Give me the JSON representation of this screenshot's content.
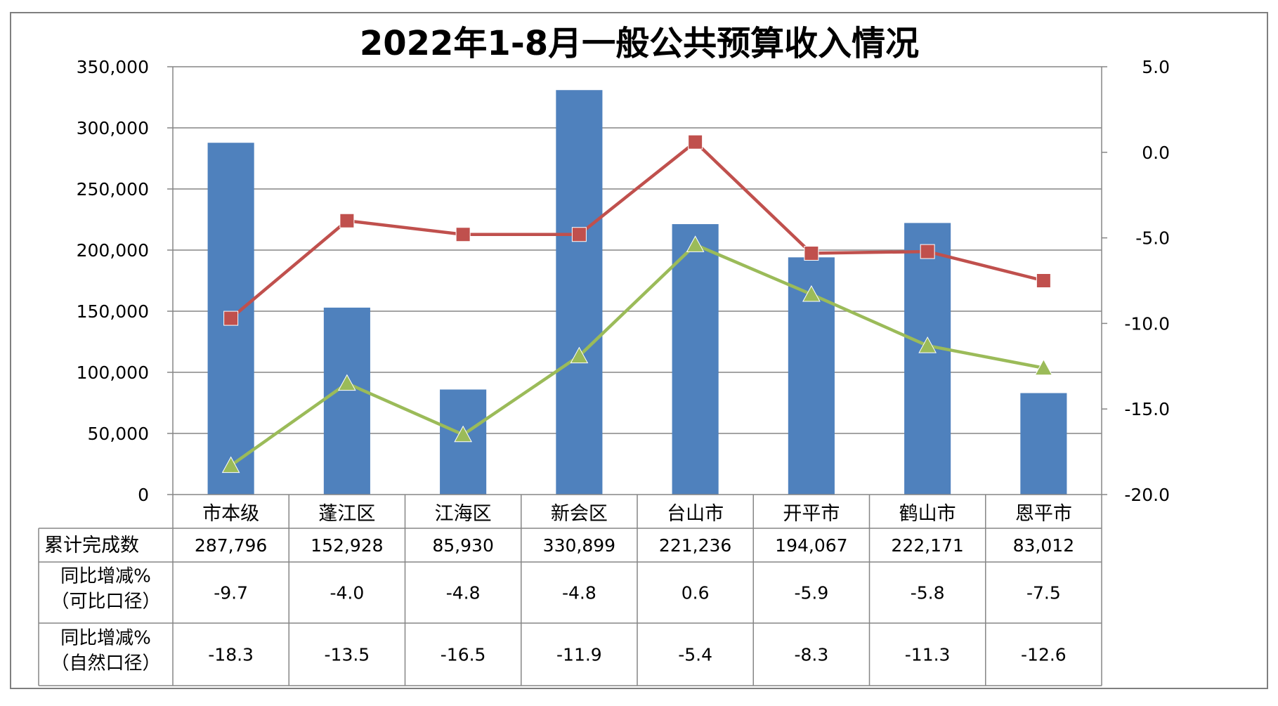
{
  "chart_data": {
    "type": "bar",
    "title": "2022年1-8月一般公共预算收入情况",
    "categories": [
      "市本级",
      "蓬江区",
      "江海区",
      "新会区",
      "台山市",
      "开平市",
      "鹤山市",
      "恩平市"
    ],
    "y_left": {
      "ylim": [
        0,
        350000
      ],
      "ticks": [
        0,
        50000,
        100000,
        150000,
        200000,
        250000,
        300000,
        350000
      ],
      "tick_labels": [
        "0",
        "50,000",
        "100,000",
        "150,000",
        "200,000",
        "250,000",
        "300,000",
        "350,000"
      ]
    },
    "y_right": {
      "ylim": [
        -20,
        5
      ],
      "ticks": [
        -20,
        -15,
        -10,
        -5,
        0,
        5
      ],
      "tick_labels": [
        "-20.0",
        "-15.0",
        "-10.0",
        "-5.0",
        "0.0",
        "5.0"
      ]
    },
    "series": [
      {
        "name": "累计完成数",
        "kind": "bar",
        "axis": "left",
        "color": "#4F81BD",
        "values": [
          287796,
          152928,
          85930,
          330899,
          221236,
          194067,
          222171,
          83012
        ],
        "labels": [
          "287,796",
          "152,928",
          "85,930",
          "330,899",
          "221,236",
          "194,067",
          "222,171",
          "83,012"
        ]
      },
      {
        "name": "同比增减%（可比口径）",
        "label_lines": [
          "同比增减%",
          "（可比口径）"
        ],
        "kind": "line",
        "marker": "square",
        "axis": "right",
        "color": "#C0504D",
        "values": [
          -9.7,
          -4.0,
          -4.8,
          -4.8,
          0.6,
          -5.9,
          -5.8,
          -7.5
        ],
        "labels": [
          "-9.7",
          "-4.0",
          "-4.8",
          "-4.8",
          "0.6",
          "-5.9",
          "-5.8",
          "-7.5"
        ]
      },
      {
        "name": "同比增减%（自然口径）",
        "label_lines": [
          "同比增减%",
          "（自然口径）"
        ],
        "kind": "line",
        "marker": "triangle",
        "axis": "right",
        "color": "#9BBB59",
        "values": [
          -18.3,
          -13.5,
          -16.5,
          -11.9,
          -5.4,
          -8.3,
          -11.3,
          -12.6
        ],
        "labels": [
          "-18.3",
          "-13.5",
          "-16.5",
          "-11.9",
          "-5.4",
          "-8.3",
          "-11.3",
          "-12.6"
        ]
      }
    ],
    "grid": true,
    "legend": "data-table-below"
  }
}
